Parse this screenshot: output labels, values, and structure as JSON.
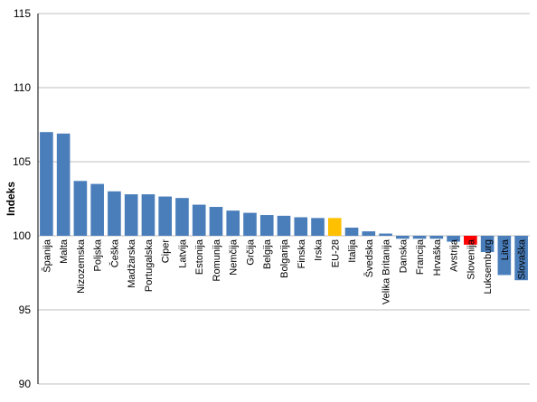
{
  "chart_data": {
    "type": "bar",
    "ylabel": "Indeks",
    "xlabel": "",
    "ylim": [
      90,
      115
    ],
    "baseline": 100,
    "yticks": [
      90,
      95,
      100,
      105,
      110,
      115
    ],
    "grid": true,
    "categories": [
      "Španija",
      "Malta",
      "Nizozemska",
      "Poljska",
      "Češka",
      "Madžarska",
      "Portugalska",
      "Ciper",
      "Latvija",
      "Estonija",
      "Romunija",
      "Nemčija",
      "Grčija",
      "Belgija",
      "Bolgarija",
      "Finska",
      "Irska",
      "EU-28",
      "Italija",
      "Švedska",
      "Velika Britanija",
      "Danska",
      "Francija",
      "Hrvaška",
      "Avstrija",
      "Slovenija",
      "Luksemburg",
      "Litva",
      "Slovaška"
    ],
    "values": [
      107.0,
      106.9,
      103.7,
      103.5,
      103.0,
      102.8,
      102.8,
      102.65,
      102.55,
      102.1,
      101.95,
      101.7,
      101.55,
      101.4,
      101.35,
      101.25,
      101.2,
      101.2,
      100.55,
      100.3,
      100.15,
      99.8,
      99.8,
      99.8,
      99.6,
      99.4,
      98.9,
      97.35,
      97.0
    ],
    "colors": {
      "default": "#4a7ebb",
      "EU-28": "#ffc000",
      "Slovenija": "#ff0000"
    }
  }
}
